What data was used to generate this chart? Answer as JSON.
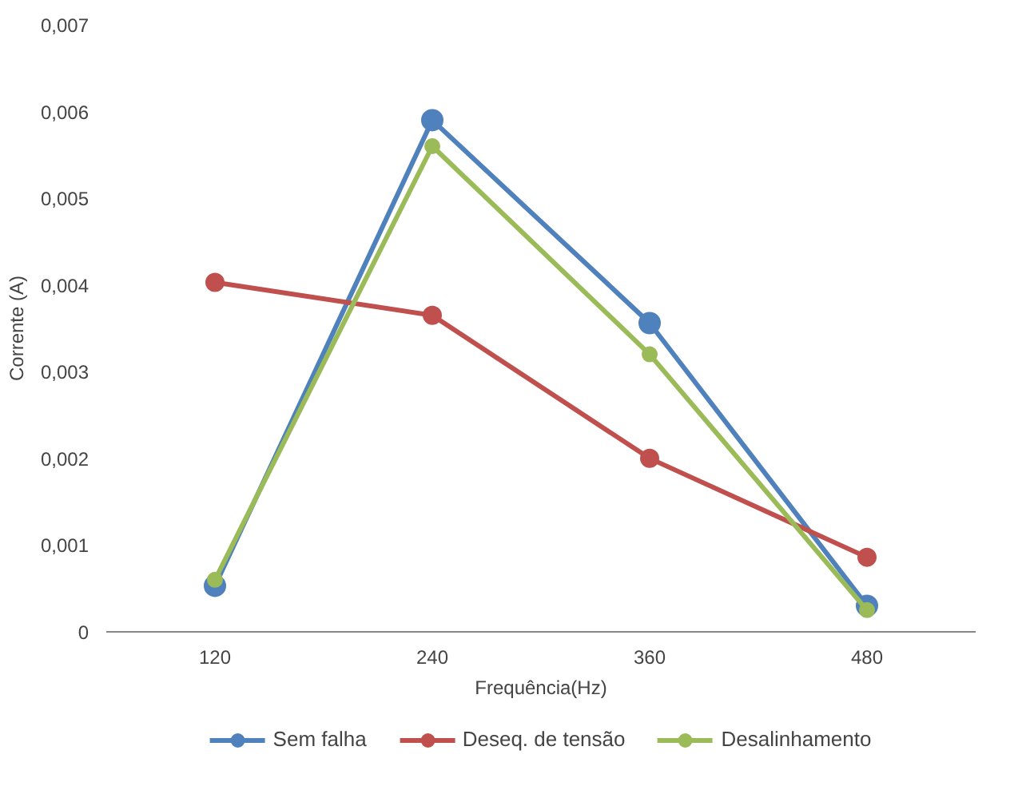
{
  "chart_data": {
    "type": "line",
    "xlabel": "Frequência(Hz)",
    "ylabel": "Corrente (A)",
    "categories": [
      "120",
      "240",
      "360",
      "480"
    ],
    "series": [
      {
        "name": "Sem falha",
        "color": "#4f81bd",
        "values": [
          0.00053,
          0.0059,
          0.00356,
          0.0003
        ]
      },
      {
        "name": "Deseq. de tensão",
        "color": "#c0504d",
        "values": [
          0.00403,
          0.00365,
          0.002,
          0.00086
        ]
      },
      {
        "name": "Desalinhamento",
        "color": "#9bbb59",
        "values": [
          0.0006,
          0.0056,
          0.0032,
          0.00025
        ]
      }
    ],
    "ylim": [
      0,
      0.007
    ],
    "yticks": [
      {
        "value": 0,
        "label": "0"
      },
      {
        "value": 0.001,
        "label": "0,001"
      },
      {
        "value": 0.002,
        "label": "0,002"
      },
      {
        "value": 0.003,
        "label": "0,003"
      },
      {
        "value": 0.004,
        "label": "0,004"
      },
      {
        "value": 0.005,
        "label": "0,005"
      },
      {
        "value": 0.006,
        "label": "0,006"
      },
      {
        "value": 0.007,
        "label": "0,007"
      }
    ],
    "grid": false,
    "legend": "bottom",
    "marker": "circle",
    "line_style": "solid"
  }
}
